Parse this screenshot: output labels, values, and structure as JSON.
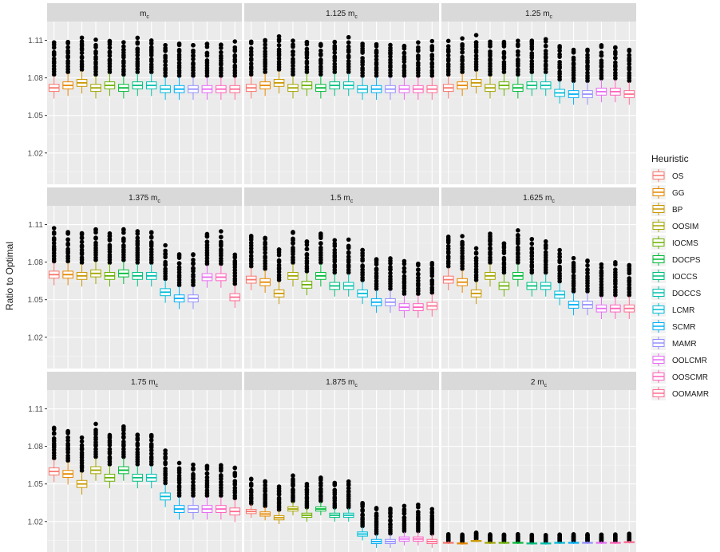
{
  "chart_data": {
    "type": "boxplot",
    "ylabel": "Ratio to Optimal",
    "ylim": [
      0.995,
      1.125
    ],
    "yticks": [
      1.02,
      1.05,
      1.08,
      1.11
    ],
    "ytick_labels": [
      "1.02",
      "1.05",
      "1.08",
      "1.11"
    ],
    "grid": true,
    "legend": {
      "title": "Heuristic",
      "placement": "right"
    },
    "series": [
      {
        "name": "OS",
        "color": "#F8766D"
      },
      {
        "name": "GG",
        "color": "#E58700"
      },
      {
        "name": "BP",
        "color": "#C99800"
      },
      {
        "name": "OOSIM",
        "color": "#A3A500"
      },
      {
        "name": "IOCMS",
        "color": "#6BB100"
      },
      {
        "name": "DOCPS",
        "color": "#00BA38"
      },
      {
        "name": "IOCCS",
        "color": "#00BF7D"
      },
      {
        "name": "DOCCS",
        "color": "#00C0AF"
      },
      {
        "name": "LCMR",
        "color": "#00BCD8"
      },
      {
        "name": "SCMR",
        "color": "#00B0F6"
      },
      {
        "name": "MAMR",
        "color": "#9590FF"
      },
      {
        "name": "OOLCMR",
        "color": "#E76BF3"
      },
      {
        "name": "OOSCMR",
        "color": "#FF62BC"
      },
      {
        "name": "OOMAMR",
        "color": "#FF6C91"
      }
    ],
    "panels": [
      {
        "label_main": "m",
        "label_sub": "c",
        "spread": 1.0,
        "out_extent": 0.029,
        "medians": [
          1.072,
          1.074,
          1.076,
          1.072,
          1.074,
          1.072,
          1.074,
          1.074,
          1.071,
          1.071,
          1.071,
          1.071,
          1.071,
          1.071
        ]
      },
      {
        "label_main": "1.125 m",
        "label_sub": "c",
        "spread": 1.0,
        "out_extent": 0.029,
        "medians": [
          1.072,
          1.074,
          1.076,
          1.072,
          1.074,
          1.072,
          1.074,
          1.074,
          1.071,
          1.071,
          1.071,
          1.071,
          1.071,
          1.071
        ]
      },
      {
        "label_main": "1.25 m",
        "label_sub": "c",
        "spread": 1.0,
        "out_extent": 0.029,
        "medians": [
          1.072,
          1.074,
          1.076,
          1.072,
          1.074,
          1.072,
          1.074,
          1.074,
          1.068,
          1.067,
          1.067,
          1.069,
          1.069,
          1.067
        ]
      },
      {
        "label_main": "1.375 m",
        "label_sub": "c",
        "spread": 1.0,
        "out_extent": 0.028,
        "medians": [
          1.07,
          1.07,
          1.069,
          1.071,
          1.069,
          1.071,
          1.069,
          1.069,
          1.056,
          1.051,
          1.051,
          1.068,
          1.068,
          1.052
        ]
      },
      {
        "label_main": "1.5 m",
        "label_sub": "c",
        "spread": 1.0,
        "out_extent": 0.028,
        "medians": [
          1.066,
          1.064,
          1.055,
          1.069,
          1.062,
          1.069,
          1.061,
          1.061,
          1.055,
          1.048,
          1.048,
          1.044,
          1.044,
          1.045
        ]
      },
      {
        "label_main": "1.625 m",
        "label_sub": "c",
        "spread": 1.0,
        "out_extent": 0.028,
        "medians": [
          1.066,
          1.064,
          1.055,
          1.069,
          1.061,
          1.069,
          1.061,
          1.061,
          1.054,
          1.046,
          1.046,
          1.043,
          1.043,
          1.043
        ]
      },
      {
        "label_main": "1.75 m",
        "label_sub": "c",
        "spread": 1.0,
        "out_extent": 0.028,
        "medians": [
          1.06,
          1.058,
          1.05,
          1.061,
          1.055,
          1.061,
          1.055,
          1.055,
          1.04,
          1.03,
          1.03,
          1.03,
          1.03,
          1.028
        ]
      },
      {
        "label_main": "1.875 m",
        "label_sub": "c",
        "spread": 0.6,
        "out_extent": 0.022,
        "medians": [
          1.028,
          1.026,
          1.023,
          1.03,
          1.025,
          1.03,
          1.025,
          1.025,
          1.01,
          1.004,
          1.004,
          1.006,
          1.006,
          1.004
        ]
      },
      {
        "label_main": "2 m",
        "label_sub": "c",
        "spread": 0.12,
        "out_extent": 0.006,
        "medians": [
          1.003,
          1.0025,
          1.0045,
          1.003,
          1.003,
          1.003,
          1.0025,
          1.0025,
          1.003,
          1.003,
          1.003,
          1.003,
          1.003,
          1.0035
        ]
      }
    ]
  }
}
